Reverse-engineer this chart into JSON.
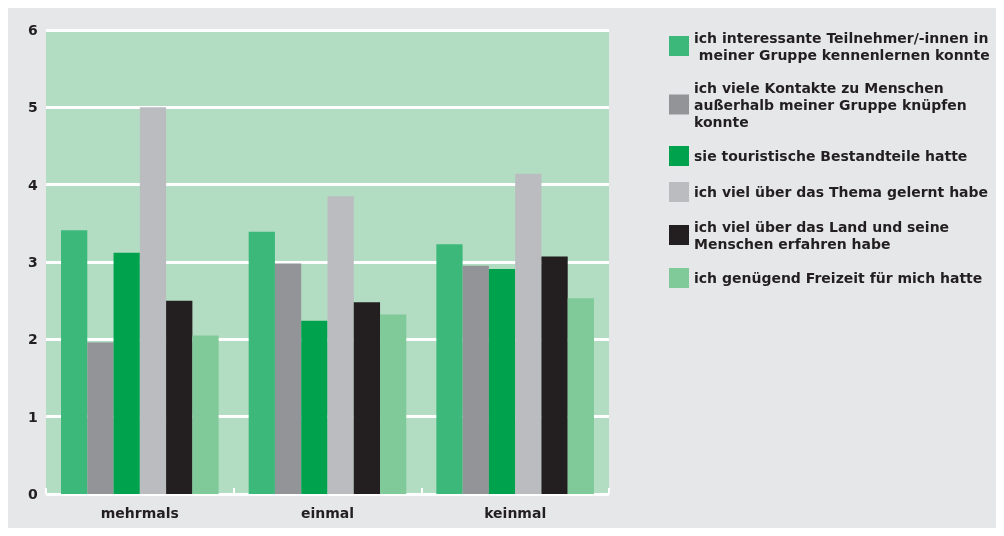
{
  "chart_data": {
    "type": "bar",
    "categories": [
      "mehrmals",
      "einmal",
      "keinmal"
    ],
    "series": [
      {
        "name": "ich interessante Teilnehmer/-innen in meiner Gruppe kennenlernen konnte",
        "color": "#3cb97a",
        "values": [
          3.41,
          3.39,
          3.23
        ]
      },
      {
        "name": "ich viele Kontakte zu Menschen außerhalb meiner Gruppe knüpfen konnte",
        "color": "#939497",
        "values": [
          1.96,
          2.98,
          2.95
        ]
      },
      {
        "name": "sie touristische Bestandteile hatte",
        "color": "#00a24d",
        "values": [
          3.12,
          2.24,
          2.91
        ]
      },
      {
        "name": "ich viel über das Thema gelernt habe",
        "color": "#bbbcc0",
        "values": [
          5.0,
          3.85,
          4.14
        ]
      },
      {
        "name": "ich viel über das Land und seine Menschen erfahren habe",
        "color": "#231f20",
        "values": [
          2.5,
          2.48,
          3.07
        ]
      },
      {
        "name": "ich genügend Freizeit für mich hatte",
        "color": "#80ca9a",
        "values": [
          2.05,
          2.32,
          2.53
        ]
      }
    ],
    "ylim": [
      0,
      6
    ],
    "yticks": [
      0,
      1,
      2,
      3,
      4,
      5,
      6
    ],
    "grid": "y",
    "legend": "right"
  }
}
